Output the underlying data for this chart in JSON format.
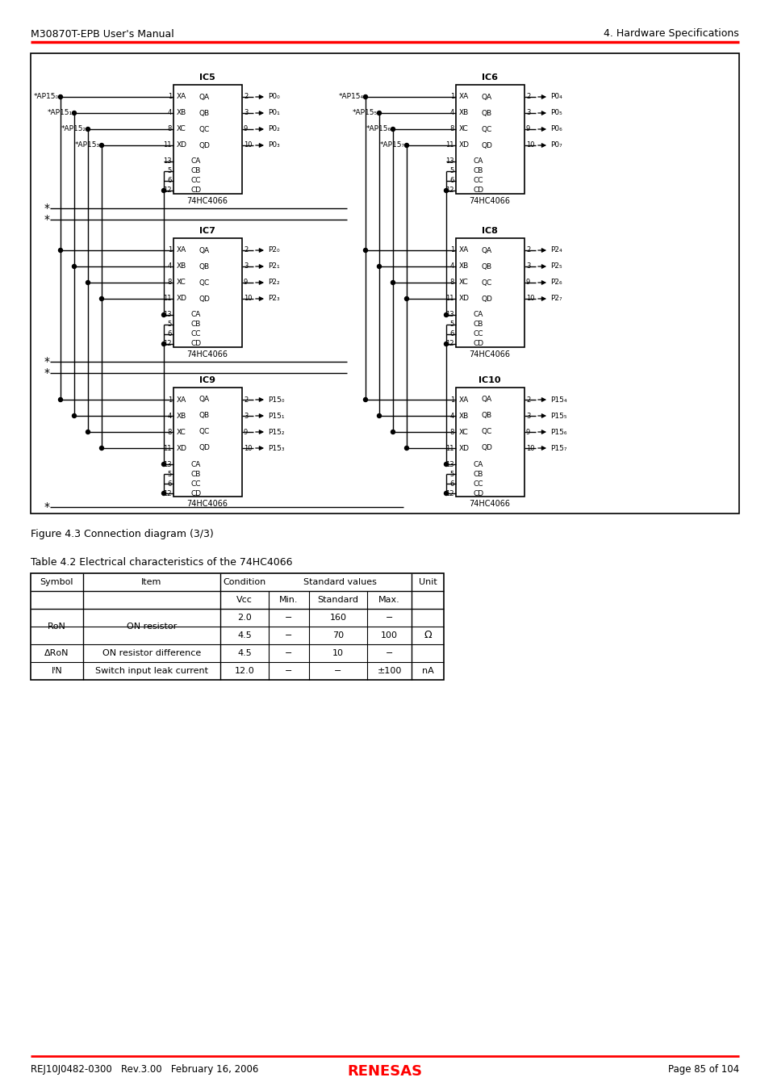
{
  "header_left": "M30870T-EPB User's Manual",
  "header_right": "4. Hardware Specifications",
  "footer_left": "REJ10J0482-0300   Rev.3.00   February 16, 2006",
  "footer_right": "Page 85 of 104",
  "figure_caption": "Figure 4.3 Connection diagram (3/3)",
  "table_title": "Table 4.2 Electrical characteristics of the 74HC4066",
  "background": "#ffffff",
  "header_line_color": "#ff0000",
  "footer_line_color": "#ff0000"
}
